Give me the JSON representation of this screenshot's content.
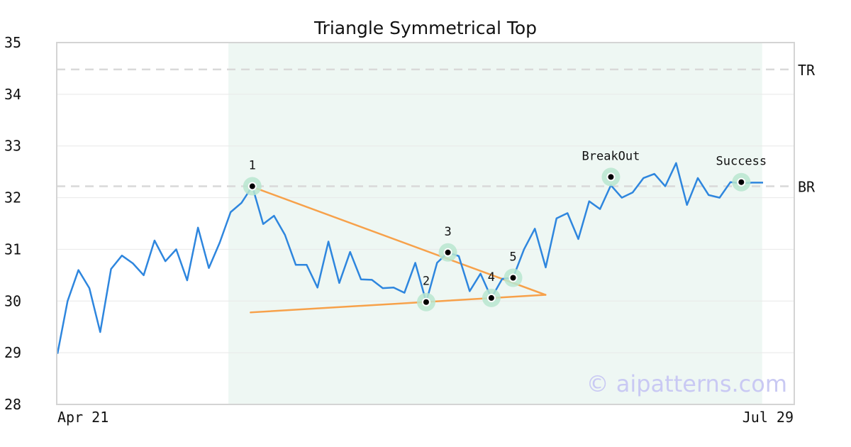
{
  "chart_data": {
    "type": "line",
    "title": "Triangle Symmetrical Top",
    "watermark": "© aipatterns.com",
    "ylim": [
      28,
      35
    ],
    "y_ticks": [
      28,
      29,
      30,
      31,
      32,
      33,
      34,
      35
    ],
    "x_ticks": [
      {
        "index": 0,
        "label": "Apr 21"
      },
      {
        "index": 65,
        "label": "Jul 29"
      }
    ],
    "grid": true,
    "pattern_zone": {
      "start_index": 16,
      "end_index": 65,
      "color": "#eef7f3"
    },
    "levels": [
      {
        "label": "TR",
        "value": 34.48
      },
      {
        "label": "BR",
        "value": 32.22
      }
    ],
    "series": [
      {
        "color": "#2e86de",
        "values": [
          28.98,
          30.0,
          30.6,
          30.25,
          29.4,
          30.62,
          30.88,
          30.73,
          30.5,
          31.17,
          30.77,
          31.0,
          30.4,
          31.42,
          30.64,
          31.13,
          31.72,
          31.9,
          32.22,
          31.49,
          31.65,
          31.28,
          30.7,
          30.7,
          30.26,
          31.15,
          30.35,
          30.95,
          30.42,
          30.41,
          30.25,
          30.26,
          30.16,
          30.74,
          29.98,
          30.74,
          30.94,
          30.87,
          30.19,
          30.53,
          30.06,
          30.43,
          30.45,
          31.0,
          31.4,
          30.65,
          31.6,
          31.7,
          31.2,
          31.93,
          31.78,
          32.24,
          32.0,
          32.1,
          32.38,
          32.46,
          32.22,
          32.67,
          31.86,
          32.38,
          32.05,
          32.0,
          32.3,
          32.28,
          32.29,
          32.29
        ]
      }
    ],
    "trendlines": [
      {
        "color": "#f7a14a",
        "from": {
          "index": 18,
          "value": 32.22
        },
        "to": {
          "index": 45,
          "value": 30.12
        }
      },
      {
        "color": "#f7a14a",
        "from": {
          "index": 18,
          "value": 29.78
        },
        "to": {
          "index": 45,
          "value": 30.12
        }
      }
    ],
    "annotations": [
      {
        "label": "1",
        "index": 18,
        "value": 32.22
      },
      {
        "label": "2",
        "index": 34,
        "value": 29.98
      },
      {
        "label": "3",
        "index": 36,
        "value": 30.94
      },
      {
        "label": "4",
        "index": 40,
        "value": 30.06
      },
      {
        "label": "5",
        "index": 42,
        "value": 30.45
      },
      {
        "label": "BreakOut",
        "index": 51,
        "value": 32.4
      },
      {
        "label": "Success",
        "index": 63,
        "value": 32.3
      }
    ],
    "colors": {
      "line": "#2e86de",
      "trend": "#f7a14a",
      "marker_halo": "#b9e6cf",
      "marker_dot": "#000000",
      "level_line": "#d9d9d9",
      "grid": "#e8e8e8",
      "frame": "#d4d4d4"
    }
  }
}
